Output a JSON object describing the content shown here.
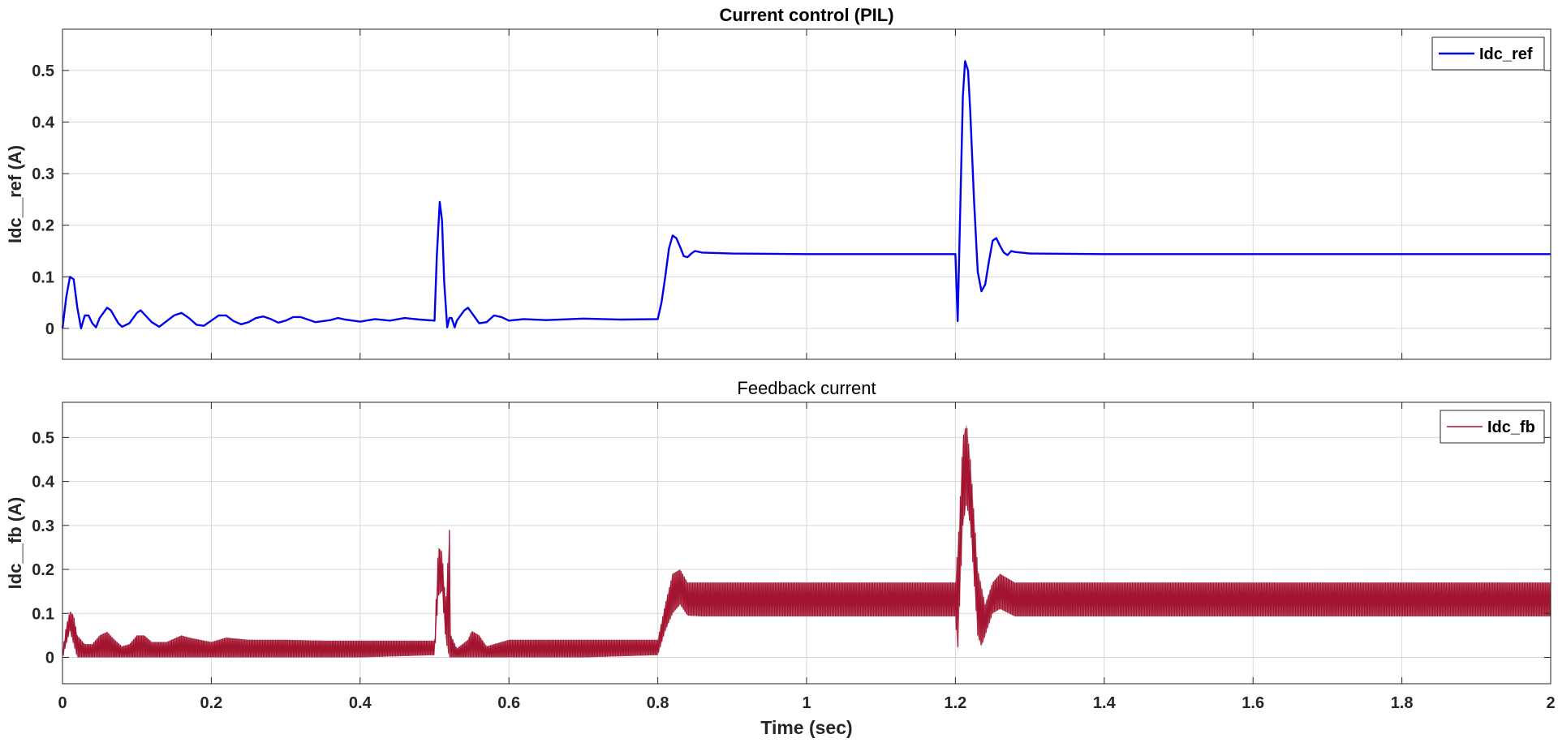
{
  "figure": {
    "colors": {
      "ref": "#0000ee",
      "fb": "#a2142f",
      "grid": "#d7d7d7",
      "axes": "#262626"
    }
  },
  "chart_data": [
    {
      "type": "line",
      "title": "Current control (PIL)",
      "xlabel": "",
      "ylabel": "Idc__ref (A)",
      "xlim": [
        0,
        2
      ],
      "ylim": [
        -0.06,
        0.58
      ],
      "x_ticks": [
        0,
        0.2,
        0.4,
        0.6,
        0.8,
        1,
        1.2,
        1.4,
        1.6,
        1.8,
        2
      ],
      "x_tick_labels": [],
      "y_ticks": [
        0,
        0.1,
        0.2,
        0.3,
        0.4,
        0.5
      ],
      "y_tick_labels": [
        "0",
        "0.1",
        "0.2",
        "0.3",
        "0.4",
        "0.5"
      ],
      "grid": true,
      "legend": {
        "position": "top-right",
        "entries": [
          "Idc_ref"
        ]
      },
      "series": [
        {
          "name": "Idc_ref",
          "color": "#0000ee",
          "points": [
            [
              0,
              0
            ],
            [
              0.005,
              0.06
            ],
            [
              0.01,
              0.1
            ],
            [
              0.015,
              0.095
            ],
            [
              0.02,
              0.04
            ],
            [
              0.025,
              0
            ],
            [
              0.03,
              0.025
            ],
            [
              0.035,
              0.025
            ],
            [
              0.04,
              0.01
            ],
            [
              0.045,
              0.002
            ],
            [
              0.05,
              0.02
            ],
            [
              0.06,
              0.04
            ],
            [
              0.065,
              0.035
            ],
            [
              0.075,
              0.01
            ],
            [
              0.08,
              0.003
            ],
            [
              0.09,
              0.01
            ],
            [
              0.1,
              0.03
            ],
            [
              0.105,
              0.035
            ],
            [
              0.12,
              0.012
            ],
            [
              0.13,
              0.003
            ],
            [
              0.15,
              0.025
            ],
            [
              0.16,
              0.03
            ],
            [
              0.17,
              0.02
            ],
            [
              0.18,
              0.007
            ],
            [
              0.19,
              0.005
            ],
            [
              0.2,
              0.015
            ],
            [
              0.21,
              0.025
            ],
            [
              0.22,
              0.025
            ],
            [
              0.23,
              0.014
            ],
            [
              0.24,
              0.008
            ],
            [
              0.25,
              0.012
            ],
            [
              0.26,
              0.02
            ],
            [
              0.27,
              0.023
            ],
            [
              0.28,
              0.018
            ],
            [
              0.29,
              0.011
            ],
            [
              0.3,
              0.015
            ],
            [
              0.31,
              0.022
            ],
            [
              0.32,
              0.022
            ],
            [
              0.34,
              0.012
            ],
            [
              0.36,
              0.016
            ],
            [
              0.37,
              0.02
            ],
            [
              0.38,
              0.017
            ],
            [
              0.4,
              0.013
            ],
            [
              0.42,
              0.018
            ],
            [
              0.44,
              0.015
            ],
            [
              0.46,
              0.02
            ],
            [
              0.48,
              0.017
            ],
            [
              0.5,
              0.015
            ],
            [
              0.503,
              0.14
            ],
            [
              0.507,
              0.245
            ],
            [
              0.51,
              0.21
            ],
            [
              0.513,
              0.09
            ],
            [
              0.517,
              0.002
            ],
            [
              0.52,
              0.02
            ],
            [
              0.523,
              0.02
            ],
            [
              0.527,
              0.002
            ],
            [
              0.53,
              0.015
            ],
            [
              0.54,
              0.035
            ],
            [
              0.545,
              0.04
            ],
            [
              0.55,
              0.03
            ],
            [
              0.56,
              0.01
            ],
            [
              0.57,
              0.012
            ],
            [
              0.58,
              0.025
            ],
            [
              0.59,
              0.022
            ],
            [
              0.6,
              0.015
            ],
            [
              0.62,
              0.018
            ],
            [
              0.65,
              0.016
            ],
            [
              0.7,
              0.019
            ],
            [
              0.75,
              0.017
            ],
            [
              0.8,
              0.018
            ],
            [
              0.805,
              0.05
            ],
            [
              0.81,
              0.1
            ],
            [
              0.815,
              0.155
            ],
            [
              0.82,
              0.18
            ],
            [
              0.825,
              0.175
            ],
            [
              0.83,
              0.158
            ],
            [
              0.835,
              0.14
            ],
            [
              0.84,
              0.138
            ],
            [
              0.845,
              0.145
            ],
            [
              0.85,
              0.15
            ],
            [
              0.86,
              0.147
            ],
            [
              0.9,
              0.145
            ],
            [
              1.0,
              0.144
            ],
            [
              1.1,
              0.144
            ],
            [
              1.2,
              0.144
            ],
            [
              1.203,
              0.014
            ],
            [
              1.206,
              0.2
            ],
            [
              1.21,
              0.45
            ],
            [
              1.213,
              0.518
            ],
            [
              1.217,
              0.5
            ],
            [
              1.22,
              0.42
            ],
            [
              1.225,
              0.25
            ],
            [
              1.23,
              0.11
            ],
            [
              1.235,
              0.072
            ],
            [
              1.24,
              0.085
            ],
            [
              1.245,
              0.13
            ],
            [
              1.25,
              0.17
            ],
            [
              1.255,
              0.175
            ],
            [
              1.26,
              0.16
            ],
            [
              1.265,
              0.147
            ],
            [
              1.27,
              0.142
            ],
            [
              1.275,
              0.15
            ],
            [
              1.28,
              0.148
            ],
            [
              1.3,
              0.145
            ],
            [
              1.4,
              0.144
            ],
            [
              1.6,
              0.144
            ],
            [
              1.8,
              0.144
            ],
            [
              2.0,
              0.144
            ]
          ]
        }
      ]
    },
    {
      "type": "line",
      "title": "Feedback current",
      "xlabel": "Time (sec)",
      "ylabel": "Idc__fb (A)",
      "xlim": [
        0,
        2
      ],
      "ylim": [
        -0.06,
        0.58
      ],
      "x_ticks": [
        0,
        0.2,
        0.4,
        0.6,
        0.8,
        1,
        1.2,
        1.4,
        1.6,
        1.8,
        2
      ],
      "x_tick_labels": [
        "0",
        "0.2",
        "0.4",
        "0.6",
        "0.8",
        "1",
        "1.2",
        "1.4",
        "1.6",
        "1.8",
        "2"
      ],
      "y_ticks": [
        0,
        0.1,
        0.2,
        0.3,
        0.4,
        0.5
      ],
      "y_tick_labels": [
        "0",
        "0.1",
        "0.2",
        "0.3",
        "0.4",
        "0.5"
      ],
      "grid": true,
      "legend": {
        "position": "top-right",
        "entries": [
          "Idc_fb"
        ]
      },
      "series": [
        {
          "name": "Idc_fb",
          "color": "#a2142f",
          "envelope_upper": [
            [
              0,
              0.01
            ],
            [
              0.005,
              0.07
            ],
            [
              0.01,
              0.105
            ],
            [
              0.015,
              0.095
            ],
            [
              0.02,
              0.05
            ],
            [
              0.03,
              0.03
            ],
            [
              0.04,
              0.03
            ],
            [
              0.05,
              0.05
            ],
            [
              0.06,
              0.058
            ],
            [
              0.07,
              0.04
            ],
            [
              0.08,
              0.025
            ],
            [
              0.09,
              0.03
            ],
            [
              0.1,
              0.05
            ],
            [
              0.11,
              0.05
            ],
            [
              0.12,
              0.035
            ],
            [
              0.14,
              0.035
            ],
            [
              0.16,
              0.05
            ],
            [
              0.17,
              0.045
            ],
            [
              0.2,
              0.035
            ],
            [
              0.22,
              0.045
            ],
            [
              0.25,
              0.04
            ],
            [
              0.3,
              0.04
            ],
            [
              0.35,
              0.038
            ],
            [
              0.4,
              0.038
            ],
            [
              0.5,
              0.038
            ],
            [
              0.505,
              0.25
            ],
            [
              0.51,
              0.24
            ],
            [
              0.515,
              0.12
            ],
            [
              0.52,
              0.29
            ],
            [
              0.522,
              0.05
            ],
            [
              0.53,
              0.02
            ],
            [
              0.545,
              0.04
            ],
            [
              0.55,
              0.06
            ],
            [
              0.56,
              0.05
            ],
            [
              0.57,
              0.025
            ],
            [
              0.6,
              0.04
            ],
            [
              0.7,
              0.04
            ],
            [
              0.8,
              0.04
            ],
            [
              0.81,
              0.12
            ],
            [
              0.82,
              0.19
            ],
            [
              0.83,
              0.2
            ],
            [
              0.84,
              0.17
            ],
            [
              0.86,
              0.17
            ],
            [
              1.0,
              0.17
            ],
            [
              1.2,
              0.17
            ],
            [
              1.205,
              0.3
            ],
            [
              1.21,
              0.5
            ],
            [
              1.215,
              0.53
            ],
            [
              1.22,
              0.45
            ],
            [
              1.23,
              0.2
            ],
            [
              1.24,
              0.12
            ],
            [
              1.25,
              0.17
            ],
            [
              1.26,
              0.19
            ],
            [
              1.28,
              0.17
            ],
            [
              1.5,
              0.17
            ],
            [
              1.8,
              0.17
            ],
            [
              2.0,
              0.17
            ]
          ],
          "envelope_lower": [
            [
              0,
              0.0
            ],
            [
              0.005,
              0.03
            ],
            [
              0.01,
              0.06
            ],
            [
              0.02,
              0.0
            ],
            [
              0.03,
              0.0
            ],
            [
              0.05,
              0.0
            ],
            [
              0.1,
              0.0
            ],
            [
              0.2,
              0.0
            ],
            [
              0.3,
              0.0
            ],
            [
              0.4,
              0.0
            ],
            [
              0.5,
              0.005
            ],
            [
              0.505,
              0.14
            ],
            [
              0.51,
              0.15
            ],
            [
              0.515,
              0.04
            ],
            [
              0.52,
              0.0
            ],
            [
              0.55,
              0.0
            ],
            [
              0.6,
              0.0
            ],
            [
              0.7,
              0.0
            ],
            [
              0.8,
              0.005
            ],
            [
              0.81,
              0.06
            ],
            [
              0.82,
              0.1
            ],
            [
              0.83,
              0.12
            ],
            [
              0.84,
              0.095
            ],
            [
              0.86,
              0.093
            ],
            [
              1.0,
              0.093
            ],
            [
              1.2,
              0.093
            ],
            [
              1.203,
              0.01
            ],
            [
              1.21,
              0.3
            ],
            [
              1.215,
              0.35
            ],
            [
              1.22,
              0.3
            ],
            [
              1.23,
              0.05
            ],
            [
              1.235,
              0.025
            ],
            [
              1.24,
              0.05
            ],
            [
              1.25,
              0.1
            ],
            [
              1.26,
              0.11
            ],
            [
              1.28,
              0.093
            ],
            [
              1.5,
              0.093
            ],
            [
              1.8,
              0.093
            ],
            [
              2.0,
              0.093
            ]
          ]
        }
      ]
    }
  ]
}
